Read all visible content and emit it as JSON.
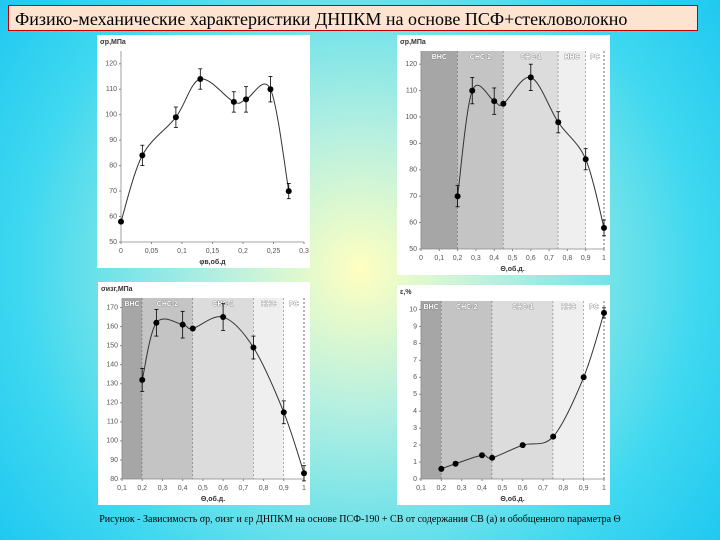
{
  "header": {
    "title": "Физико-механические  характеристики ДНПКМ на основе ПСФ+стекловолокно"
  },
  "caption": "Рисунок  - Зависимость σр, σизг и εр ДНПКМ на основе ПСФ-190 + СВ от содержания СВ (а) и обобщенного параметра Θ",
  "chart_data": [
    {
      "type": "scatter",
      "y_label": "σр,МПа",
      "x_label": "φв,об.д",
      "color": "#000000",
      "trend": true,
      "x": [
        0,
        0.035,
        0.09,
        0.13,
        0.185,
        0.205,
        0.245,
        0.275
      ],
      "values": [
        58,
        84,
        99,
        114,
        105,
        106,
        110,
        70
      ],
      "errors": [
        0,
        4,
        4,
        4,
        4,
        5,
        5,
        3
      ],
      "xlim": [
        0,
        0.3
      ],
      "ylim": [
        50,
        125
      ],
      "xticks": [
        0,
        {
          "value": 0.05,
          "label": "0,05"
        },
        {
          "value": 0.1,
          "label": "0,1"
        },
        {
          "value": 0.15,
          "label": "0,15"
        },
        {
          "value": 0.2,
          "label": "0,2"
        },
        {
          "value": 0.25,
          "label": "0,25"
        },
        {
          "value": 0.3,
          "label": "0,3"
        }
      ],
      "yticks": [
        50,
        60,
        70,
        80,
        90,
        100,
        110,
        120
      ]
    },
    {
      "type": "scatter",
      "y_label": "σр,МПа",
      "x_label": "Θ,об.д.",
      "color": "#000000",
      "trend": true,
      "x": [
        0.2,
        0.28,
        0.4,
        0.45,
        0.6,
        0.75,
        0.9,
        1.0
      ],
      "values": [
        70,
        110,
        106,
        105,
        115,
        98,
        84,
        58
      ],
      "errors": [
        4,
        5,
        5,
        0,
        5,
        4,
        4,
        3
      ],
      "xlim": [
        0,
        1
      ],
      "ylim": [
        50,
        125
      ],
      "xticks": [
        0,
        {
          "value": 0.1,
          "label": "0,1"
        },
        {
          "value": 0.2,
          "label": "0,2"
        },
        {
          "value": 0.3,
          "label": "0,3"
        },
        {
          "value": 0.4,
          "label": "0,4"
        },
        {
          "value": 0.5,
          "label": "0,5"
        },
        {
          "value": 0.6,
          "label": "0,6"
        },
        {
          "value": 0.7,
          "label": "0,7"
        },
        {
          "value": 0.8,
          "label": "0,8"
        },
        {
          "value": 0.9,
          "label": "0,9"
        },
        1
      ],
      "yticks": [
        50,
        60,
        70,
        80,
        90,
        100,
        110,
        120
      ],
      "regions": [
        {
          "label": "ВНС",
          "start": 0,
          "end": 0.2,
          "color": "#a6a6a6"
        },
        {
          "label": "СНС-2",
          "start": 0.2,
          "end": 0.45,
          "color": "#c4c4c4"
        },
        {
          "label": "СНС-1",
          "start": 0.45,
          "end": 0.75,
          "color": "#dcdcdc"
        },
        {
          "label": "ННС",
          "start": 0.75,
          "end": 0.9,
          "color": "#efefef"
        },
        {
          "label": "РС",
          "start": 0.9,
          "end": 1,
          "color": "#ffffff"
        }
      ]
    },
    {
      "type": "scatter",
      "y_label": "σизг,МПа",
      "x_label": "Θ,об.д.",
      "color": "#000000",
      "trend": true,
      "x": [
        0.2,
        0.27,
        0.4,
        0.45,
        0.6,
        0.75,
        0.9,
        1.0
      ],
      "values": [
        132,
        162,
        161,
        159,
        165,
        149,
        115,
        83
      ],
      "errors": [
        6,
        7,
        7,
        0,
        7,
        6,
        6,
        4
      ],
      "xlim": [
        0.1,
        1
      ],
      "ylim": [
        80,
        175
      ],
      "xticks": [
        {
          "value": 0.1,
          "label": "0,1"
        },
        {
          "value": 0.2,
          "label": "0,2"
        },
        {
          "value": 0.3,
          "label": "0,3"
        },
        {
          "value": 0.4,
          "label": "0,4"
        },
        {
          "value": 0.5,
          "label": "0,5"
        },
        {
          "value": 0.6,
          "label": "0,6"
        },
        {
          "value": 0.7,
          "label": "0,7"
        },
        {
          "value": 0.8,
          "label": "0,8"
        },
        {
          "value": 0.9,
          "label": "0,9"
        },
        1
      ],
      "yticks": [
        80,
        90,
        100,
        110,
        120,
        130,
        140,
        150,
        160,
        170
      ],
      "regions": [
        {
          "label": "ВНС",
          "start": 0.1,
          "end": 0.2,
          "color": "#a6a6a6"
        },
        {
          "label": "СНС-2",
          "start": 0.2,
          "end": 0.45,
          "color": "#c4c4c4"
        },
        {
          "label": "СНС-1",
          "start": 0.45,
          "end": 0.75,
          "color": "#dcdcdc"
        },
        {
          "label": "ННС",
          "start": 0.75,
          "end": 0.9,
          "color": "#efefef"
        },
        {
          "label": "РС",
          "start": 0.9,
          "end": 1,
          "color": "#ffffff"
        }
      ]
    },
    {
      "type": "scatter",
      "y_label": "ε,%",
      "x_label": "Θ,об.д.",
      "color": "#000000",
      "trend": true,
      "x": [
        0.2,
        0.27,
        0.4,
        0.45,
        0.6,
        0.75,
        0.9,
        1.0
      ],
      "values": [
        0.6,
        0.9,
        1.4,
        1.25,
        2.0,
        2.5,
        6.0,
        9.8
      ],
      "errors": [
        0,
        0,
        0,
        0,
        0,
        0,
        0,
        0.3
      ],
      "xlim": [
        0.1,
        1
      ],
      "ylim": [
        0,
        10.5
      ],
      "xticks": [
        {
          "value": 0.1,
          "label": "0,1"
        },
        {
          "value": 0.2,
          "label": "0,2"
        },
        {
          "value": 0.3,
          "label": "0,3"
        },
        {
          "value": 0.4,
          "label": "0,4"
        },
        {
          "value": 0.5,
          "label": "0,5"
        },
        {
          "value": 0.6,
          "label": "0,6"
        },
        {
          "value": 0.7,
          "label": "0,7"
        },
        {
          "value": 0.8,
          "label": "0,8"
        },
        {
          "value": 0.9,
          "label": "0,9"
        },
        1
      ],
      "yticks": [
        0,
        1,
        2,
        3,
        4,
        5,
        6,
        7,
        8,
        9,
        10
      ],
      "regions": [
        {
          "label": "ВНС",
          "start": 0.1,
          "end": 0.2,
          "color": "#a6a6a6"
        },
        {
          "label": "СНС-2",
          "start": 0.2,
          "end": 0.45,
          "color": "#c4c4c4"
        },
        {
          "label": "СНС-1",
          "start": 0.45,
          "end": 0.75,
          "color": "#dcdcdc"
        },
        {
          "label": "ННС",
          "start": 0.75,
          "end": 0.9,
          "color": "#efefef"
        },
        {
          "label": "РС",
          "start": 0.9,
          "end": 1,
          "color": "#ffffff"
        }
      ]
    }
  ]
}
